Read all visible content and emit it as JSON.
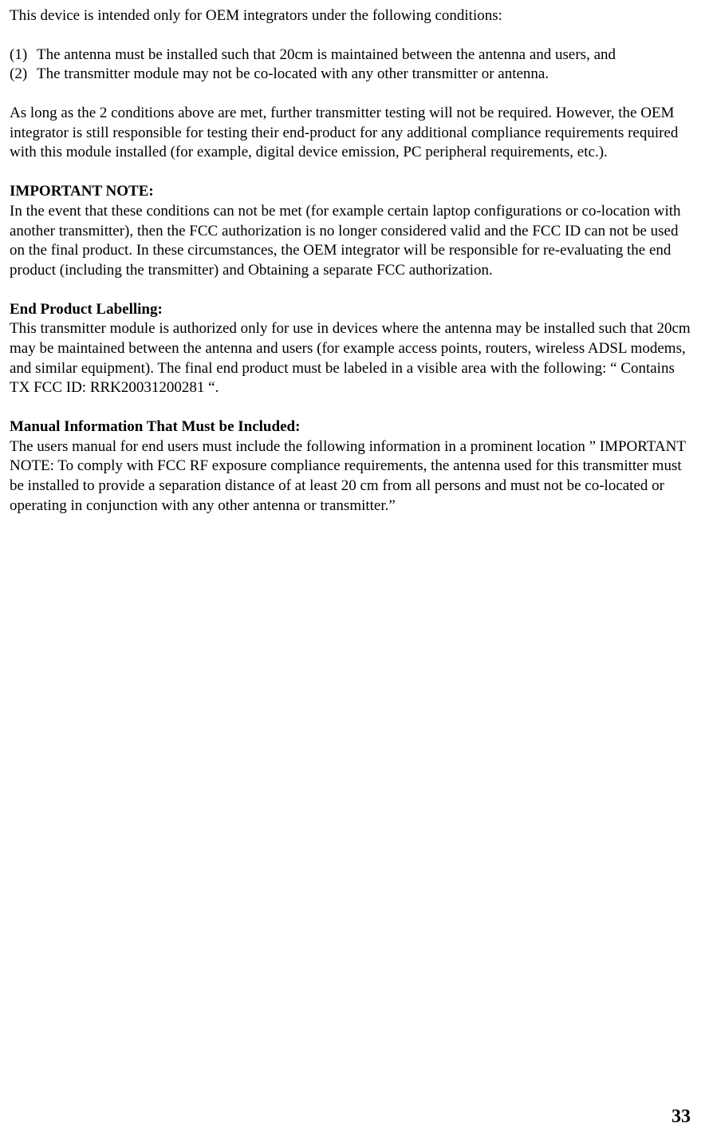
{
  "intro": "This device is intended only for OEM integrators under the following conditions:",
  "conditions": [
    {
      "num": "(1)",
      "text": "The antenna must be installed such that 20cm is maintained between the antenna and users, and"
    },
    {
      "num": "(2)",
      "text": "The transmitter module may not be co-located with any other transmitter or antenna."
    }
  ],
  "aslongas": "As long as the 2 conditions above are met, further transmitter testing will not be required. However, the OEM integrator is still responsible for testing their end-product for any additional compliance requirements required with this module installed (for example, digital device emission, PC peripheral requirements, etc.).",
  "importantHeading": "IMPORTANT NOTE:",
  "importantBody": "In the event that these conditions can not be met (for example certain laptop configurations or co-location with another transmitter), then the FCC authorization is no longer considered valid and the FCC ID can not be used on the final product. In these circumstances, the OEM integrator will be responsible for re-evaluating the end product (including the transmitter) and Obtaining a separate FCC authorization.",
  "labelHeading": "End Product Labelling:",
  "labelBody": "This transmitter module is authorized only for use in devices where the antenna may be installed such that 20cm may be maintained between the antenna and users (for example access points, routers, wireless ADSL modems, and similar equipment). The final end product must be labeled in a visible area with the following: “ Contains TX FCC ID: RRK20031200281 “.",
  "manualHeading": "Manual Information That Must be Included:",
  "manualBody": "The users manual for end users must include the following information in a prominent location ” IMPORTANT NOTE: To comply with FCC RF exposure compliance requirements, the antenna used for this transmitter must be installed to provide a separation distance of at least 20 cm from all persons and must not be co-located or operating in conjunction with any other antenna or transmitter.”",
  "pageNumber": "33",
  "style": {
    "fontFamily": "Times New Roman",
    "fontSize": 19,
    "textColor": "#000000",
    "backgroundColor": "#ffffff",
    "pageNumberFontSize": 24,
    "pageNumberWeight": "bold"
  }
}
